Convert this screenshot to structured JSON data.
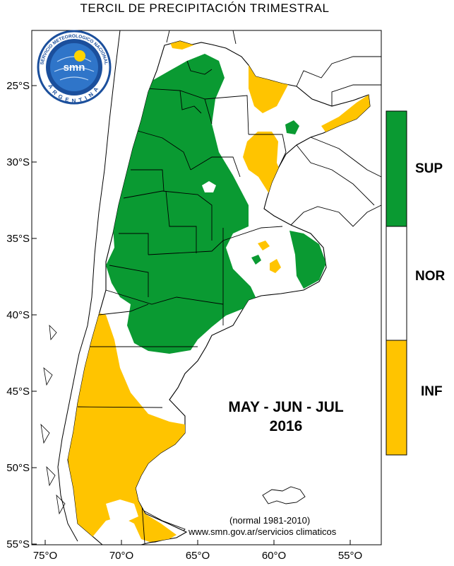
{
  "title": "TERCIL DE PRECIPITACIÓN TRIMESTRAL",
  "period": {
    "months": "MAY - JUN - JUL",
    "year": "2016"
  },
  "note": "(normal 1981-2010)",
  "url": "www.smn.gov.ar/servicios climaticos",
  "logo": {
    "top_text": "SERVICIO METEOROLOGICO NACIONAL",
    "center_text": "smn",
    "bottom_text": "ARGENTINA"
  },
  "legend": [
    {
      "label": "SUP",
      "color": "#0a9a32"
    },
    {
      "label": "NOR",
      "color": "#ffffff"
    },
    {
      "label": "INF",
      "color": "#ffc400"
    }
  ],
  "axes": {
    "lat_ticks": [
      "25°S",
      "30°S",
      "35°S",
      "40°S",
      "45°S",
      "50°S",
      "55°S"
    ],
    "lon_ticks": [
      "75°O",
      "70°O",
      "65°O",
      "60°O",
      "55°O"
    ]
  },
  "colors": {
    "superior": "#0a9a32",
    "normal": "#ffffff",
    "inferior": "#ffc400",
    "border": "#000000"
  }
}
